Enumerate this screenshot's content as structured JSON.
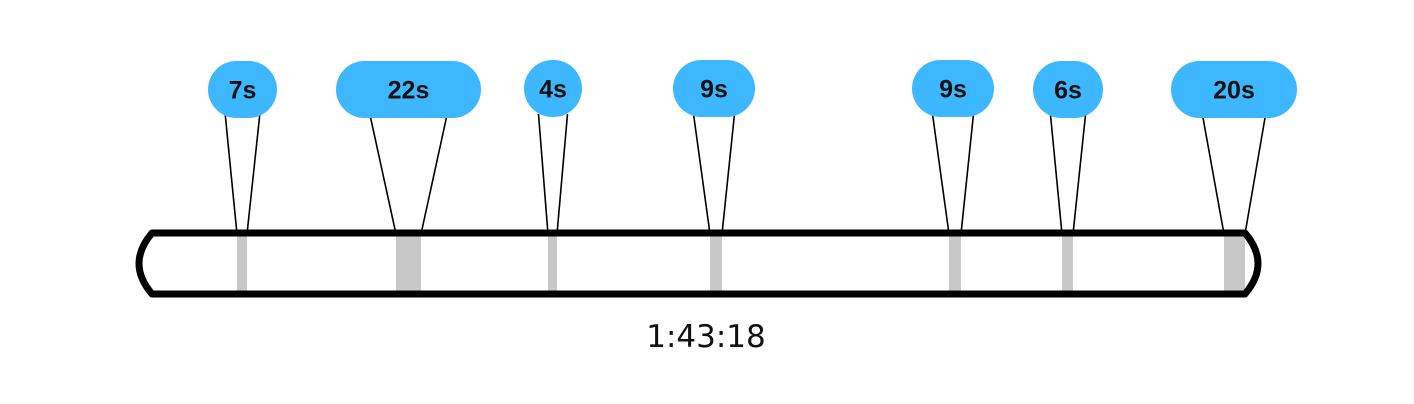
{
  "colors": {
    "bubble_fill": "#3db7ff",
    "marker_fill": "#c8c8c8",
    "outline": "#000000",
    "text": "#111111"
  },
  "timeline": {
    "total_duration": "1:43:18",
    "segments": [
      {
        "label": "7s"
      },
      {
        "label": "22s"
      },
      {
        "label": "4s"
      },
      {
        "label": "9s"
      },
      {
        "label": "9s"
      },
      {
        "label": "6s"
      },
      {
        "label": "20s"
      }
    ]
  }
}
